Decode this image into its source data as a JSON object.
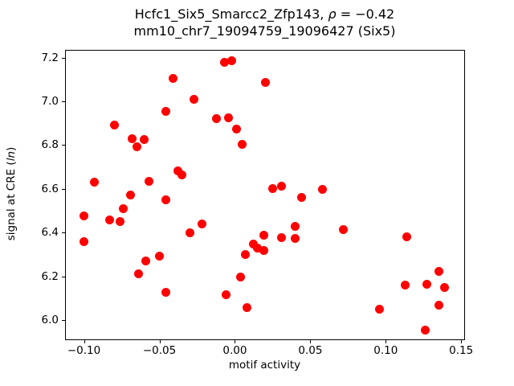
{
  "title": {
    "line1_pre": "Hcfc1_Six5_Smarcc2_Zfp143, ",
    "line1_rho": "ρ",
    "line1_post": " = −0.42",
    "line2": "mm10_chr7_19094759_19096427 (Six5)"
  },
  "axis_labels": {
    "x": "motif activity",
    "y_pre": "signal at CRE (",
    "y_italic": "ln",
    "y_post": ")"
  },
  "chart_data": {
    "type": "scatter",
    "title": "Hcfc1_Six5_Smarcc2_Zfp143, ρ = −0.42",
    "subtitle": "mm10_chr7_19094759_19096427 (Six5)",
    "xlabel": "motif activity",
    "ylabel": "signal at CRE (ln)",
    "marker_color": "#ff0000",
    "marker_diameter_px": 11,
    "background_color": "#ffffff",
    "grid": false,
    "legend": false,
    "xlim": [
      -0.112,
      0.152
    ],
    "ylim": [
      5.911,
      7.232
    ],
    "x_ticks": [
      -0.1,
      -0.05,
      0.0,
      0.05,
      0.1,
      0.15
    ],
    "x_tick_labels": [
      "−0.10",
      "−0.05",
      "0.00",
      "0.05",
      "0.10",
      "0.15"
    ],
    "y_ticks": [
      6.0,
      6.2,
      6.4,
      6.6,
      6.8,
      7.0,
      7.2
    ],
    "y_tick_labels": [
      "6.0",
      "6.2",
      "6.4",
      "6.6",
      "6.8",
      "7.0",
      "7.2"
    ],
    "points": [
      [
        -0.007,
        7.178
      ],
      [
        -0.002,
        7.188
      ],
      [
        -0.041,
        7.106
      ],
      [
        0.02,
        7.087
      ],
      [
        -0.027,
        7.008
      ],
      [
        -0.046,
        6.955
      ],
      [
        -0.08,
        6.893
      ],
      [
        -0.012,
        6.922
      ],
      [
        -0.004,
        6.926
      ],
      [
        0.001,
        6.872
      ],
      [
        -0.068,
        6.829
      ],
      [
        -0.06,
        6.826
      ],
      [
        -0.065,
        6.793
      ],
      [
        0.005,
        6.802
      ],
      [
        -0.038,
        6.681
      ],
      [
        -0.035,
        6.665
      ],
      [
        -0.093,
        6.632
      ],
      [
        -0.057,
        6.633
      ],
      [
        -0.069,
        6.57
      ],
      [
        0.025,
        6.602
      ],
      [
        0.031,
        6.614
      ],
      [
        0.058,
        6.599
      ],
      [
        0.044,
        6.561
      ],
      [
        -0.046,
        6.548
      ],
      [
        -0.074,
        6.508
      ],
      [
        -0.1,
        6.477
      ],
      [
        -0.083,
        6.459
      ],
      [
        -0.076,
        6.449
      ],
      [
        -0.1,
        6.357
      ],
      [
        -0.022,
        6.441
      ],
      [
        -0.03,
        6.398
      ],
      [
        0.04,
        6.427
      ],
      [
        0.072,
        6.413
      ],
      [
        0.114,
        6.382
      ],
      [
        0.031,
        6.376
      ],
      [
        0.04,
        6.373
      ],
      [
        0.019,
        6.387
      ],
      [
        0.007,
        6.301
      ],
      [
        0.012,
        6.348
      ],
      [
        0.015,
        6.327
      ],
      [
        0.019,
        6.316
      ],
      [
        -0.059,
        6.269
      ],
      [
        -0.05,
        6.292
      ],
      [
        -0.064,
        6.211
      ],
      [
        -0.046,
        6.125
      ],
      [
        0.004,
        6.196
      ],
      [
        -0.006,
        6.114
      ],
      [
        0.008,
        6.055
      ],
      [
        0.135,
        6.221
      ],
      [
        0.113,
        6.161
      ],
      [
        0.127,
        6.164
      ],
      [
        0.139,
        6.15
      ],
      [
        0.135,
        6.066
      ],
      [
        0.096,
        6.049
      ],
      [
        0.126,
        5.953
      ]
    ]
  }
}
